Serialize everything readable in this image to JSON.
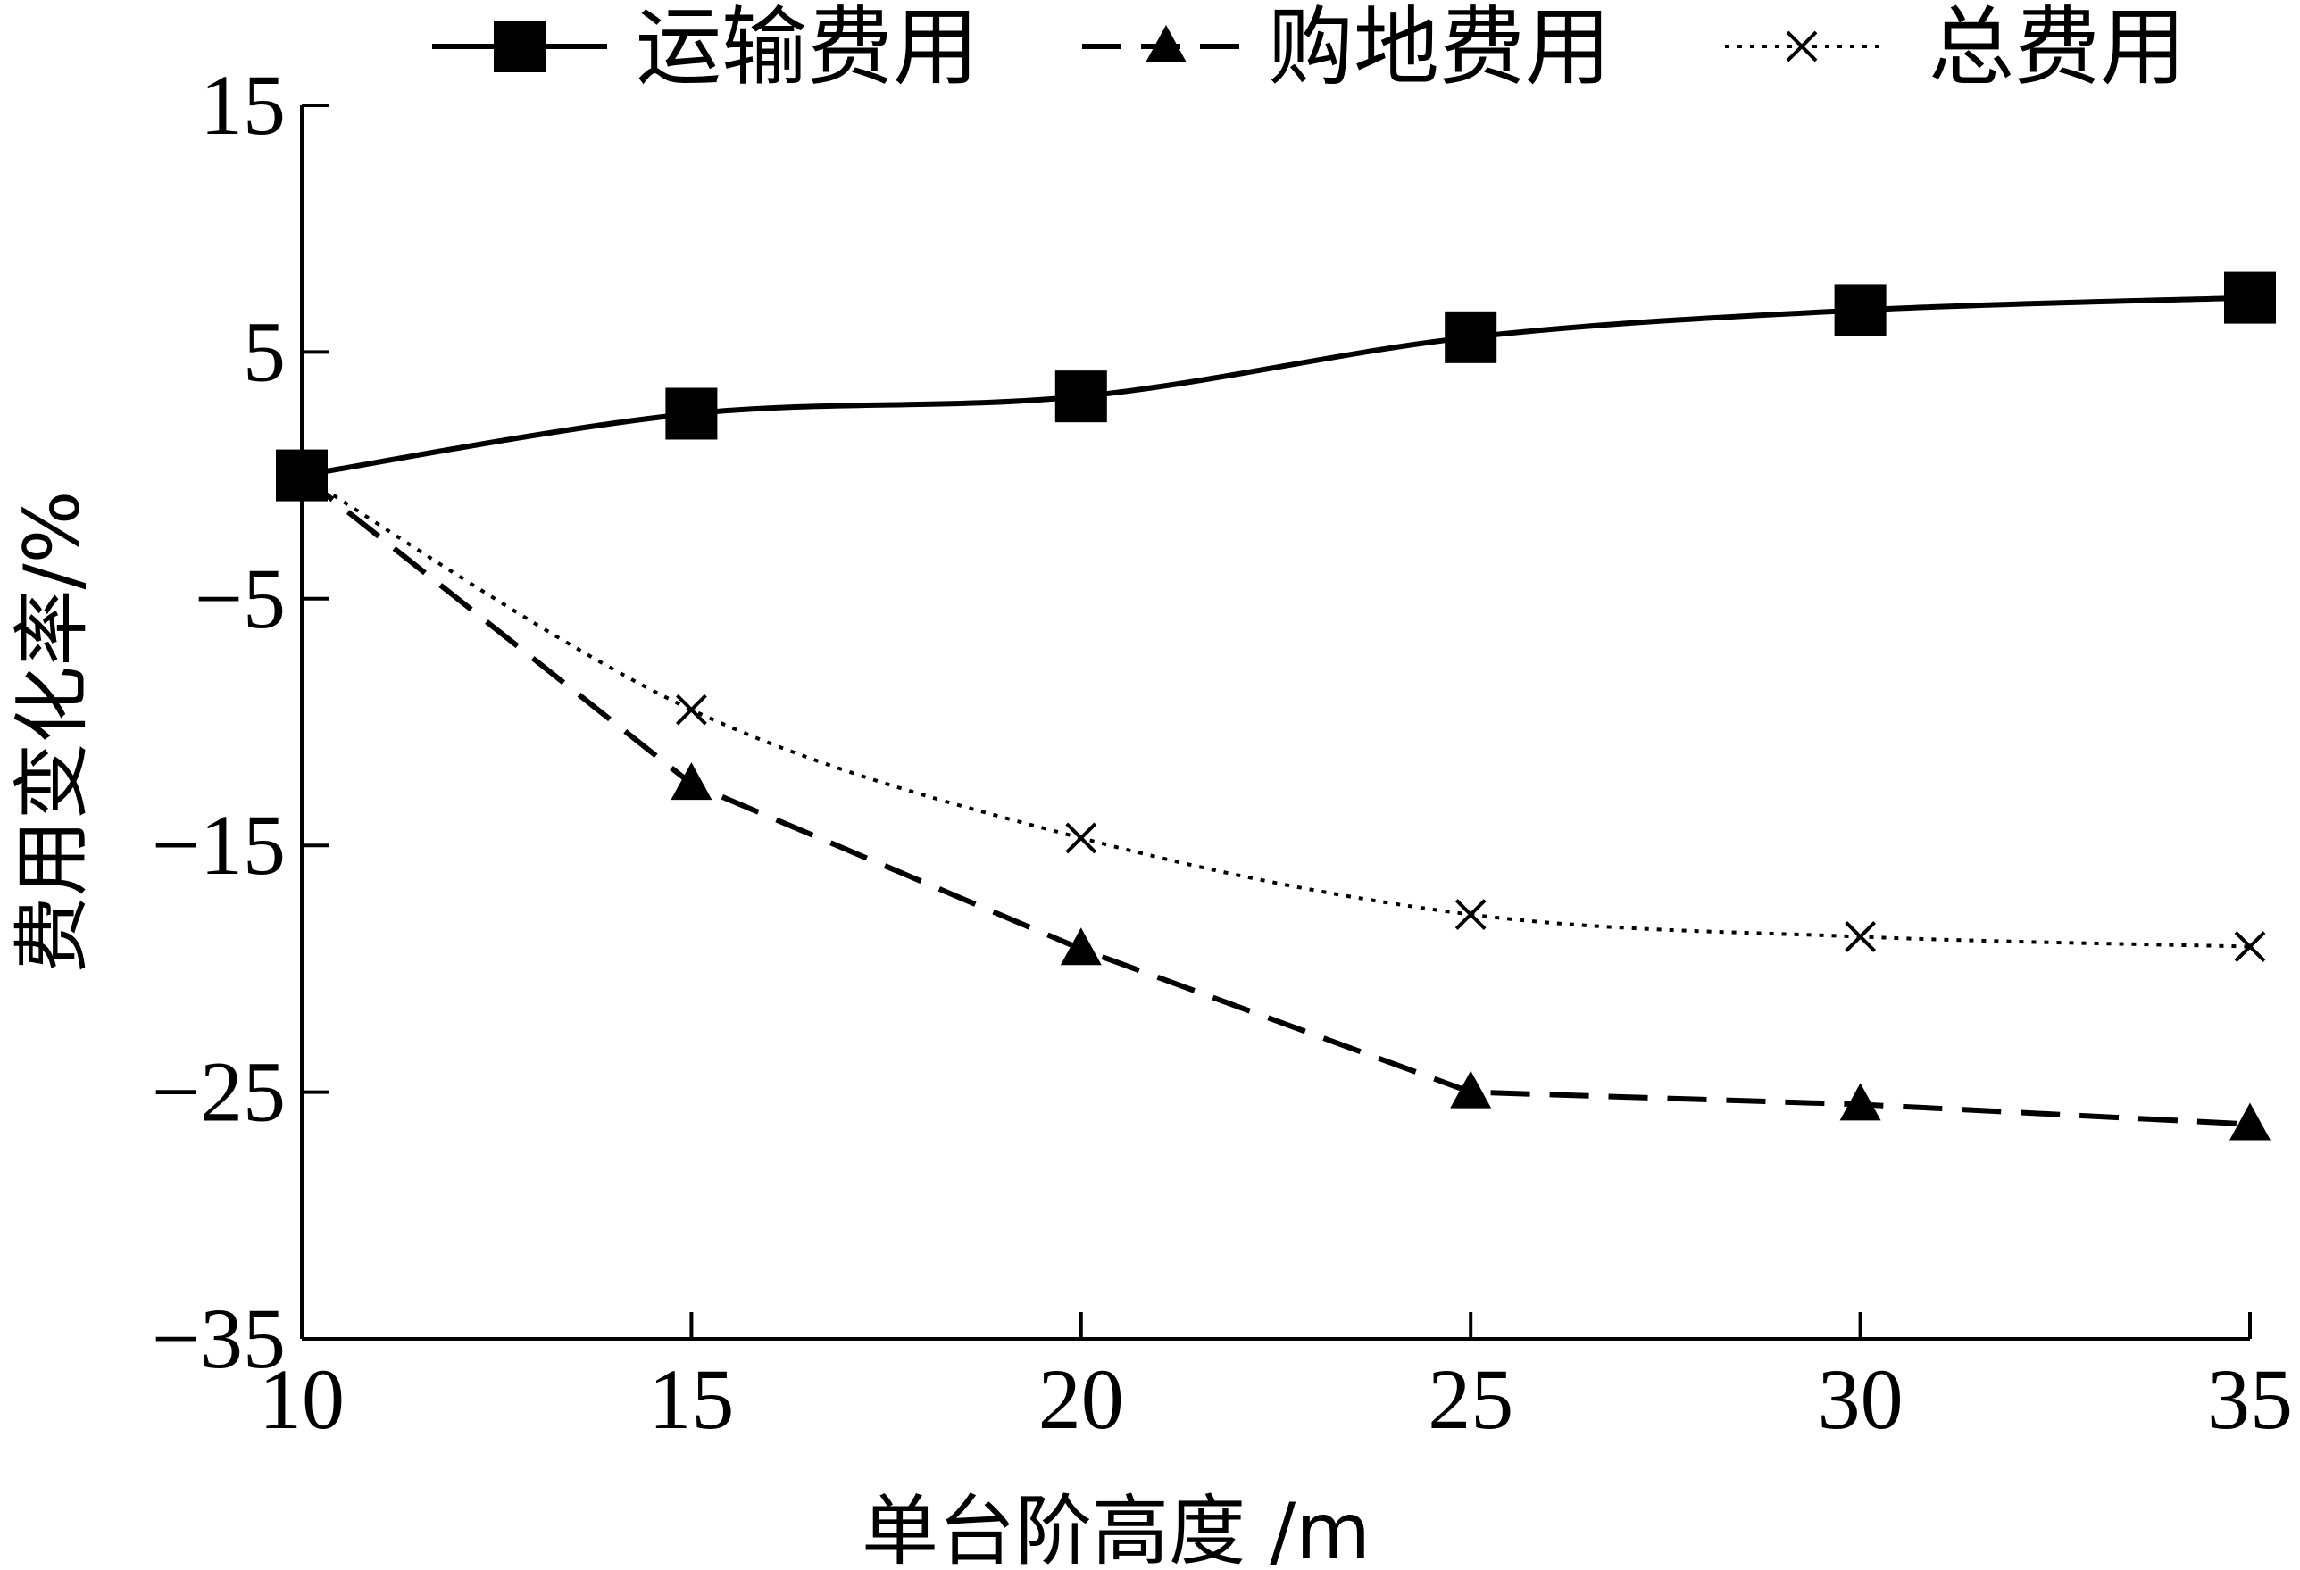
{
  "chart_data": {
    "type": "line",
    "title": "",
    "xlabel": "单台阶高度 /m",
    "ylabel": "费用变化率/%",
    "x": [
      10,
      15,
      20,
      25,
      30,
      35
    ],
    "xlim": [
      10,
      35
    ],
    "ylim": [
      -35,
      15
    ],
    "xticks": [
      "10",
      "15",
      "20",
      "25",
      "30",
      "35"
    ],
    "yticks": [
      "15",
      "5",
      "−5",
      "−15",
      "−25",
      "−35"
    ],
    "ytick_values": [
      15,
      5,
      -5,
      -15,
      -25,
      -35
    ],
    "grid": false,
    "legend_position": "top",
    "series": [
      {
        "name": "运输费用",
        "values": [
          0,
          2.5,
          3.2,
          5.6,
          6.7,
          7.2
        ],
        "marker": "square",
        "line": "solid"
      },
      {
        "name": "购地费用",
        "values": [
          0,
          -12.5,
          -19.2,
          -25.0,
          -25.5,
          -26.3
        ],
        "marker": "triangle",
        "line": "dashed"
      },
      {
        "name": "总费用",
        "values": [
          0,
          -9.5,
          -14.7,
          -17.8,
          -18.7,
          -19.1
        ],
        "marker": "x",
        "line": "dotted"
      }
    ]
  }
}
